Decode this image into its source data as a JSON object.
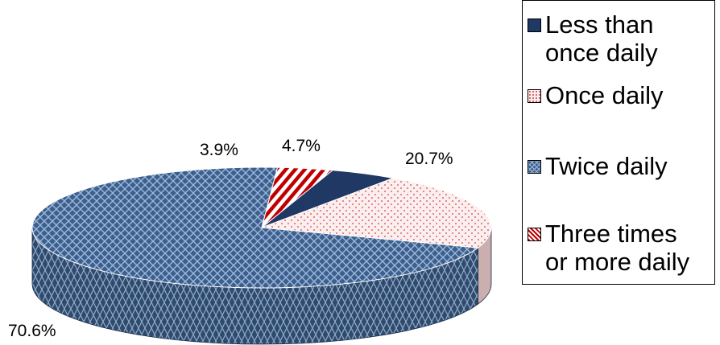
{
  "chart_data": {
    "type": "pie",
    "style": "3d",
    "slices": [
      {
        "label": "Less than once daily",
        "legend_lines": [
          "Less than",
          "once daily"
        ],
        "value": 4.7,
        "display": "4.7%",
        "color": "#1f3864",
        "pattern": "solid"
      },
      {
        "label": "Once daily",
        "legend_lines": [
          "Once daily"
        ],
        "value": 20.7,
        "display": "20.7%",
        "color": "#f2dcdb",
        "pattern": "dots"
      },
      {
        "label": "Twice daily",
        "legend_lines": [
          "Twice daily"
        ],
        "value": 70.6,
        "display": "70.6%",
        "color": "#3b5f8f",
        "pattern": "crosshatch"
      },
      {
        "label": "Three times or more daily",
        "legend_lines": [
          "Three times",
          "or more daily"
        ],
        "value": 3.9,
        "display": "3.9%",
        "color": "#c00000",
        "pattern": "stripes"
      }
    ],
    "legend_position": "right"
  }
}
